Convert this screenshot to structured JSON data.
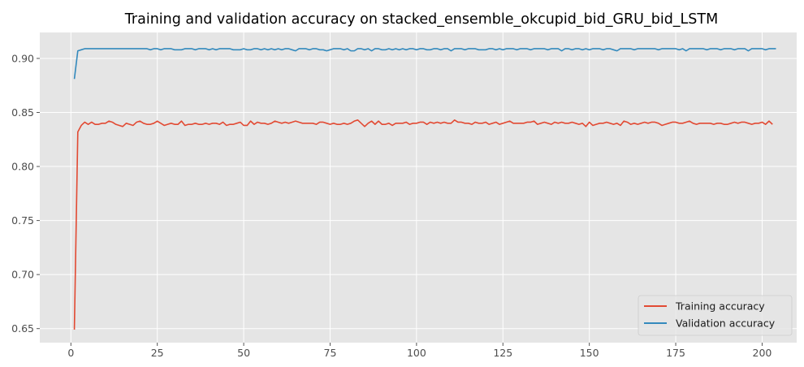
{
  "chart_data": {
    "type": "line",
    "title": "Training and validation accuracy on stacked_ensemble_okcupid_bid_GRU_bid_LSTM",
    "xlabel": "",
    "ylabel": "",
    "xlim": [
      -9,
      210
    ],
    "ylim": [
      0.637,
      0.924
    ],
    "xticks": [
      0,
      25,
      50,
      75,
      100,
      125,
      150,
      175,
      200
    ],
    "xtick_labels": [
      "0",
      "25",
      "50",
      "75",
      "100",
      "125",
      "150",
      "175",
      "200"
    ],
    "yticks": [
      0.65,
      0.7,
      0.75,
      0.8,
      0.85,
      0.9
    ],
    "ytick_labels": [
      "0.65",
      "0.70",
      "0.75",
      "0.80",
      "0.85",
      "0.90"
    ],
    "grid": true,
    "legend_position": "lower-right",
    "x_start": 1,
    "x_end": 200,
    "series": [
      {
        "name": "Training accuracy",
        "color": "#E24A33",
        "values": [
          0.649,
          0.832,
          0.838,
          0.841,
          0.839,
          0.841,
          0.839,
          0.839,
          0.84,
          0.84,
          0.842,
          0.841,
          0.839,
          0.838,
          0.837,
          0.84,
          0.839,
          0.838,
          0.841,
          0.842,
          0.84,
          0.839,
          0.839,
          0.84,
          0.842,
          0.84,
          0.838,
          0.839,
          0.84,
          0.839,
          0.839,
          0.842,
          0.838,
          0.839,
          0.839,
          0.84,
          0.839,
          0.839,
          0.84,
          0.839,
          0.84,
          0.84,
          0.839,
          0.841,
          0.838,
          0.839,
          0.839,
          0.84,
          0.841,
          0.838,
          0.838,
          0.842,
          0.839,
          0.841,
          0.84,
          0.84,
          0.839,
          0.84,
          0.842,
          0.841,
          0.84,
          0.841,
          0.84,
          0.841,
          0.842,
          0.841,
          0.84,
          0.84,
          0.84,
          0.84,
          0.839,
          0.841,
          0.841,
          0.84,
          0.839,
          0.84,
          0.839,
          0.839,
          0.84,
          0.839,
          0.84,
          0.842,
          0.843,
          0.84,
          0.837,
          0.84,
          0.842,
          0.839,
          0.842,
          0.839,
          0.839,
          0.84,
          0.838,
          0.84,
          0.84,
          0.84,
          0.841,
          0.839,
          0.84,
          0.84,
          0.841,
          0.841,
          0.839,
          0.841,
          0.84,
          0.841,
          0.84,
          0.841,
          0.84,
          0.84,
          0.843,
          0.841,
          0.841,
          0.84,
          0.84,
          0.839,
          0.841,
          0.84,
          0.84,
          0.841,
          0.839,
          0.84,
          0.841,
          0.839,
          0.84,
          0.841,
          0.842,
          0.84,
          0.84,
          0.84,
          0.84,
          0.841,
          0.841,
          0.842,
          0.839,
          0.84,
          0.841,
          0.84,
          0.839,
          0.841,
          0.84,
          0.841,
          0.84,
          0.84,
          0.841,
          0.84,
          0.839,
          0.84,
          0.837,
          0.841,
          0.838,
          0.839,
          0.84,
          0.84,
          0.841,
          0.84,
          0.839,
          0.84,
          0.838,
          0.842,
          0.841,
          0.839,
          0.84,
          0.839,
          0.84,
          0.841,
          0.84,
          0.841,
          0.841,
          0.84,
          0.838,
          0.839,
          0.84,
          0.841,
          0.841,
          0.84,
          0.84,
          0.841,
          0.842,
          0.84,
          0.839,
          0.84,
          0.84,
          0.84,
          0.84,
          0.839,
          0.84,
          0.84,
          0.839,
          0.839,
          0.84,
          0.841,
          0.84,
          0.841,
          0.841,
          0.84,
          0.839,
          0.84,
          0.84,
          0.841,
          0.839,
          0.842,
          0.839
        ]
      },
      {
        "name": "Validation accuracy",
        "color": "#348ABD",
        "values": [
          0.881,
          0.907,
          0.908,
          0.909,
          0.909,
          0.909,
          0.909,
          0.909,
          0.909,
          0.909,
          0.909,
          0.909,
          0.909,
          0.909,
          0.909,
          0.909,
          0.909,
          0.909,
          0.909,
          0.909,
          0.909,
          0.909,
          0.908,
          0.909,
          0.909,
          0.908,
          0.909,
          0.909,
          0.909,
          0.908,
          0.908,
          0.908,
          0.909,
          0.909,
          0.909,
          0.908,
          0.909,
          0.909,
          0.909,
          0.908,
          0.909,
          0.908,
          0.909,
          0.909,
          0.909,
          0.909,
          0.908,
          0.908,
          0.908,
          0.909,
          0.908,
          0.908,
          0.909,
          0.909,
          0.908,
          0.909,
          0.908,
          0.909,
          0.908,
          0.909,
          0.908,
          0.909,
          0.909,
          0.908,
          0.907,
          0.909,
          0.909,
          0.909,
          0.908,
          0.909,
          0.909,
          0.908,
          0.908,
          0.907,
          0.908,
          0.909,
          0.909,
          0.909,
          0.908,
          0.909,
          0.907,
          0.907,
          0.909,
          0.909,
          0.908,
          0.909,
          0.907,
          0.909,
          0.909,
          0.908,
          0.908,
          0.909,
          0.908,
          0.909,
          0.908,
          0.909,
          0.908,
          0.909,
          0.909,
          0.908,
          0.909,
          0.909,
          0.908,
          0.908,
          0.909,
          0.909,
          0.908,
          0.909,
          0.909,
          0.907,
          0.909,
          0.909,
          0.909,
          0.908,
          0.909,
          0.909,
          0.909,
          0.908,
          0.908,
          0.908,
          0.909,
          0.909,
          0.908,
          0.909,
          0.908,
          0.909,
          0.909,
          0.909,
          0.908,
          0.909,
          0.909,
          0.909,
          0.908,
          0.909,
          0.909,
          0.909,
          0.909,
          0.908,
          0.909,
          0.909,
          0.909,
          0.907,
          0.909,
          0.909,
          0.908,
          0.909,
          0.909,
          0.908,
          0.909,
          0.908,
          0.909,
          0.909,
          0.909,
          0.908,
          0.909,
          0.909,
          0.908,
          0.907,
          0.909,
          0.909,
          0.909,
          0.909,
          0.908,
          0.909,
          0.909,
          0.909,
          0.909,
          0.909,
          0.909,
          0.908,
          0.909,
          0.909,
          0.909,
          0.909,
          0.909,
          0.908,
          0.909,
          0.907,
          0.909,
          0.909,
          0.909,
          0.909,
          0.909,
          0.908,
          0.909,
          0.909,
          0.909,
          0.908,
          0.909,
          0.909,
          0.909,
          0.908,
          0.909,
          0.909,
          0.909,
          0.907,
          0.909,
          0.909,
          0.909,
          0.909,
          0.908,
          0.909,
          0.909,
          0.909
        ]
      }
    ]
  }
}
